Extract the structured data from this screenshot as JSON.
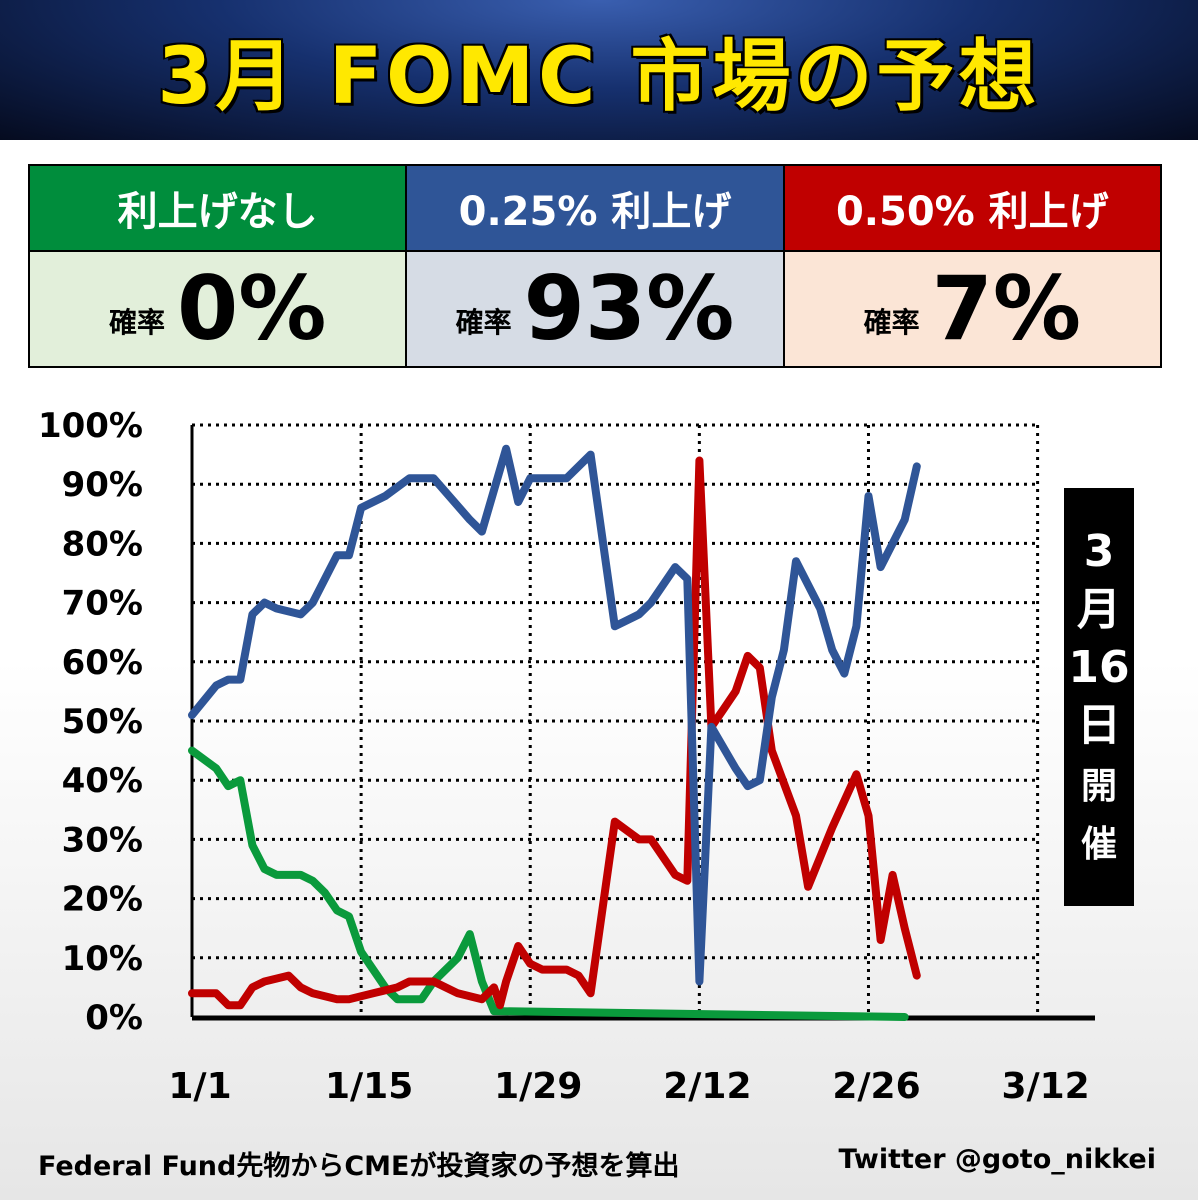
{
  "title": "3月 FOMC  市場の予想",
  "probabilities": [
    {
      "header": "利上げなし",
      "label": "確率",
      "value": "0%",
      "head_color": "#008d3c",
      "body_color": "#e2efda"
    },
    {
      "header": "0.25% 利上げ",
      "label": "確率",
      "value": "93%",
      "head_color": "#2f5597",
      "body_color": "#d6dce5"
    },
    {
      "header": "0.50% 利上げ",
      "label": "確率",
      "value": "7%",
      "head_color": "#c00000",
      "body_color": "#fbe5d6"
    }
  ],
  "meeting": {
    "month": "3",
    "month_char": "月",
    "day": "16",
    "day_char": "日",
    "held1": "開",
    "held2": "催"
  },
  "footer": {
    "source": "Federal Fund先物からCMEが投資家の予想を算出",
    "credit": "Twitter @goto_nikkei"
  },
  "chart_data": {
    "type": "line",
    "title": "",
    "xlabel": "",
    "ylabel": "",
    "grid": true,
    "ylim": [
      0,
      100
    ],
    "x_ticks": [
      "1/1",
      "1/15",
      "1/29",
      "2/12",
      "2/26",
      "3/12"
    ],
    "y_ticks": [
      "0%",
      "10%",
      "20%",
      "30%",
      "40%",
      "50%",
      "60%",
      "70%",
      "80%",
      "90%",
      "100%"
    ],
    "x_unit": "days since 1/1",
    "series": [
      {
        "key": "no_hike",
        "color": "#0a9a3c",
        "points": [
          [
            0,
            45
          ],
          [
            2,
            42
          ],
          [
            3,
            39
          ],
          [
            4,
            40
          ],
          [
            5,
            29
          ],
          [
            6,
            25
          ],
          [
            7,
            24
          ],
          [
            9,
            24
          ],
          [
            10,
            23
          ],
          [
            11,
            21
          ],
          [
            12,
            18
          ],
          [
            13,
            17
          ],
          [
            14,
            11
          ],
          [
            15,
            8
          ],
          [
            16,
            5
          ],
          [
            17,
            3
          ],
          [
            19,
            3
          ],
          [
            20,
            6
          ],
          [
            22,
            10
          ],
          [
            23,
            14
          ],
          [
            24,
            6
          ],
          [
            25,
            1
          ],
          [
            59,
            0
          ]
        ]
      },
      {
        "key": "hike_025",
        "color": "#2f5597",
        "points": [
          [
            0,
            51
          ],
          [
            2,
            56
          ],
          [
            3,
            57
          ],
          [
            4,
            57
          ],
          [
            5,
            68
          ],
          [
            6,
            70
          ],
          [
            7,
            69
          ],
          [
            9,
            68
          ],
          [
            10,
            70
          ],
          [
            12,
            78
          ],
          [
            13,
            78
          ],
          [
            14,
            86
          ],
          [
            16,
            88
          ],
          [
            18,
            91
          ],
          [
            20,
            91
          ],
          [
            23,
            84
          ],
          [
            24,
            82
          ],
          [
            25,
            89
          ],
          [
            26,
            96
          ],
          [
            27,
            87
          ],
          [
            28,
            91
          ],
          [
            30,
            91
          ],
          [
            31,
            91
          ],
          [
            33,
            95
          ],
          [
            35,
            66
          ],
          [
            37,
            68
          ],
          [
            38,
            70
          ],
          [
            40,
            76
          ],
          [
            41,
            74
          ],
          [
            42,
            6
          ],
          [
            43,
            49
          ],
          [
            45,
            42
          ],
          [
            46,
            39
          ],
          [
            47,
            40
          ],
          [
            48,
            54
          ],
          [
            49,
            62
          ],
          [
            50,
            77
          ],
          [
            52,
            69
          ],
          [
            53,
            62
          ],
          [
            54,
            58
          ],
          [
            55,
            66
          ],
          [
            56,
            88
          ],
          [
            57,
            76
          ],
          [
            59,
            84
          ],
          [
            60,
            93
          ]
        ]
      },
      {
        "key": "hike_050",
        "color": "#c00000",
        "points": [
          [
            0,
            4
          ],
          [
            2,
            4
          ],
          [
            3,
            2
          ],
          [
            4,
            2
          ],
          [
            5,
            5
          ],
          [
            6,
            6
          ],
          [
            8,
            7
          ],
          [
            9,
            5
          ],
          [
            10,
            4
          ],
          [
            12,
            3
          ],
          [
            13,
            3
          ],
          [
            15,
            4
          ],
          [
            17,
            5
          ],
          [
            18,
            6
          ],
          [
            20,
            6
          ],
          [
            22,
            4
          ],
          [
            24,
            3
          ],
          [
            25,
            5
          ],
          [
            25.5,
            2
          ],
          [
            26,
            6
          ],
          [
            27,
            12
          ],
          [
            28,
            9
          ],
          [
            29,
            8
          ],
          [
            30,
            8
          ],
          [
            31,
            8
          ],
          [
            32,
            7
          ],
          [
            33,
            4
          ],
          [
            35,
            33
          ],
          [
            37,
            30
          ],
          [
            38,
            30
          ],
          [
            40,
            24
          ],
          [
            41,
            23
          ],
          [
            42,
            94
          ],
          [
            43,
            49
          ],
          [
            44,
            52
          ],
          [
            45,
            55
          ],
          [
            46,
            61
          ],
          [
            47,
            59
          ],
          [
            48,
            45
          ],
          [
            50,
            34
          ],
          [
            51,
            22
          ],
          [
            53,
            32
          ],
          [
            55,
            41
          ],
          [
            56,
            34
          ],
          [
            57,
            13
          ],
          [
            58,
            24
          ],
          [
            59,
            15
          ],
          [
            60,
            7
          ]
        ]
      }
    ]
  }
}
